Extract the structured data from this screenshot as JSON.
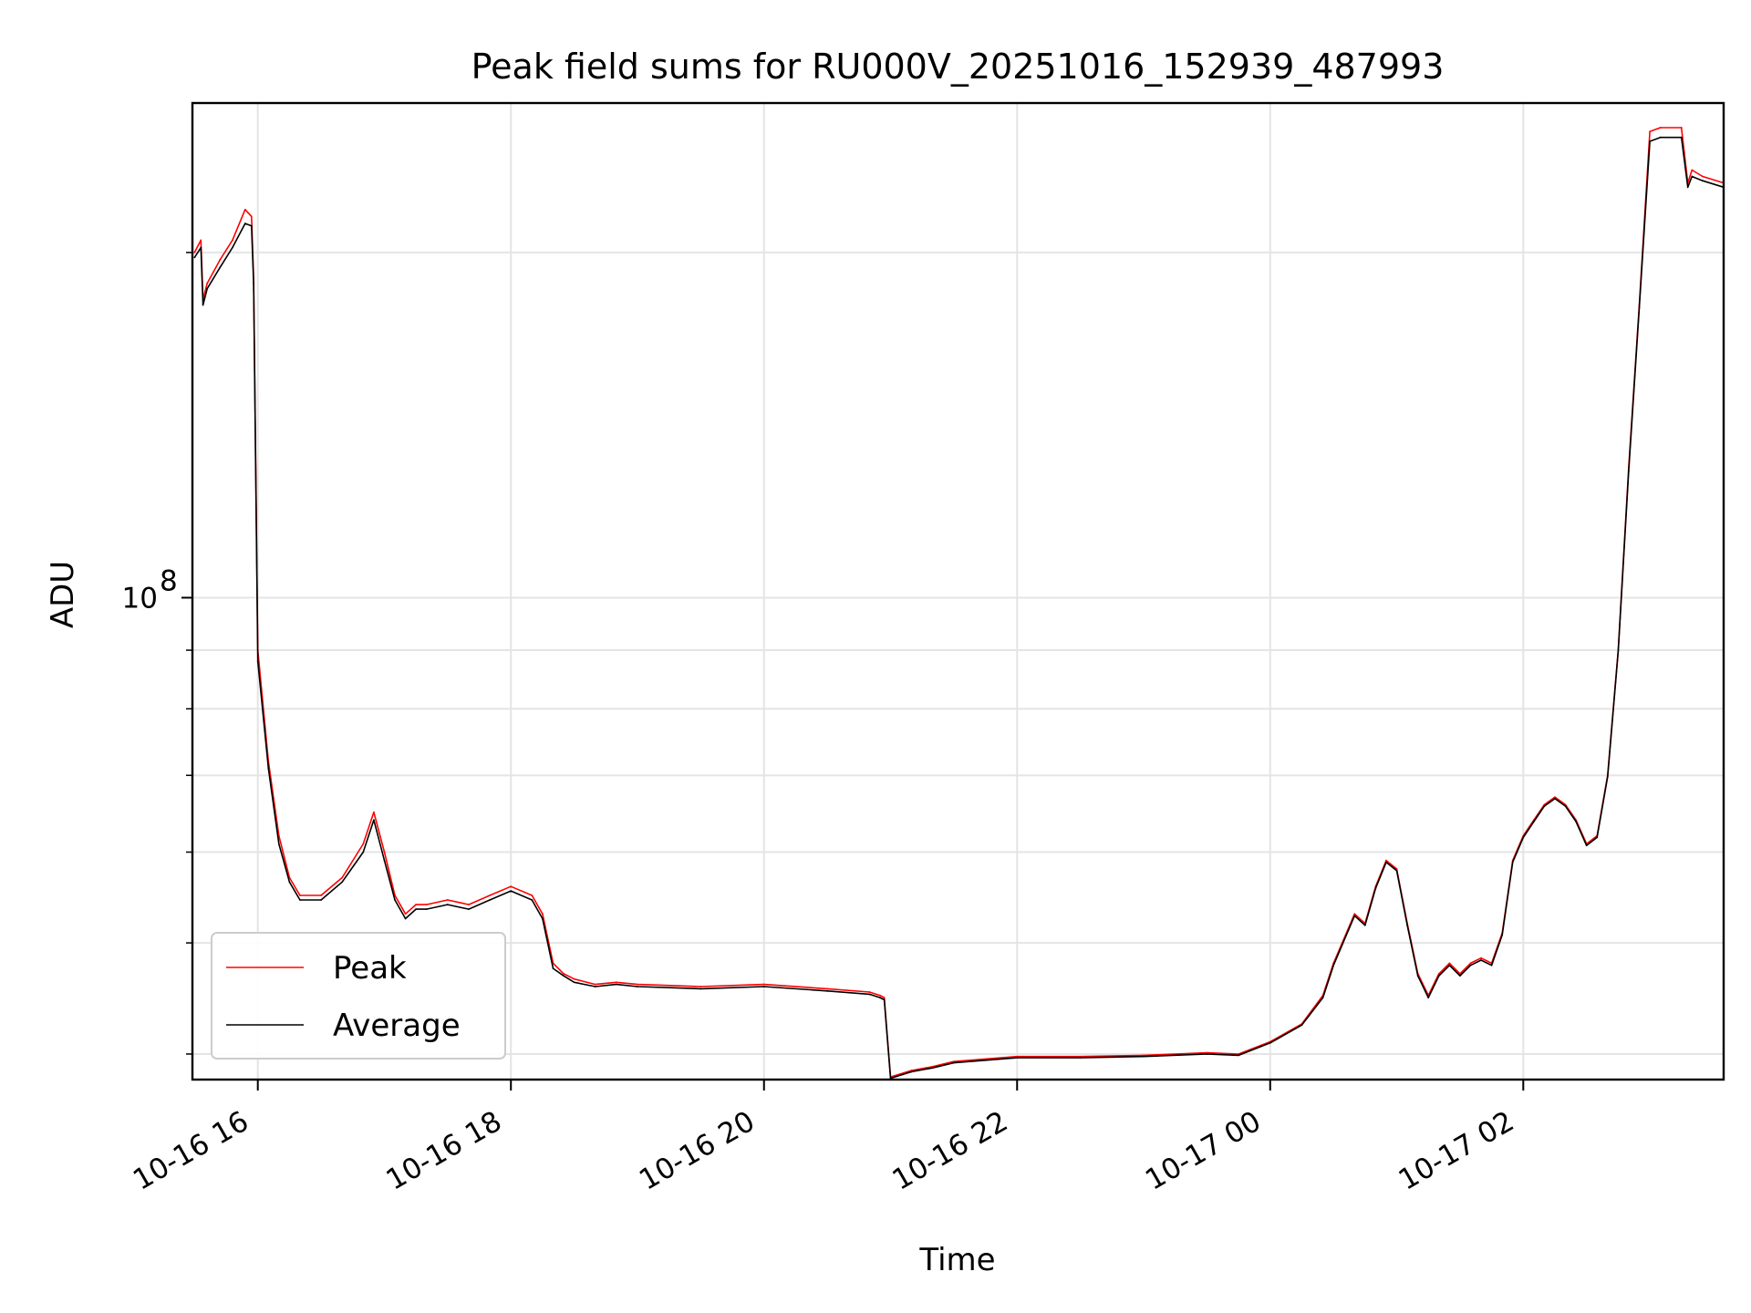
{
  "chart_data": {
    "type": "line",
    "title": "Peak field sums for RU000V_20251016_152939_487993",
    "xlabel": "Time",
    "ylabel": "ADU",
    "y_scale": "log",
    "grid": true,
    "legend_position": "lower-left",
    "x_ticks": [
      "10-16 16",
      "10-16 18",
      "10-16 20",
      "10-16 22",
      "10-17 00",
      "10-17 02"
    ],
    "x_tick_values": [
      "2025-10-16 16:00",
      "2025-10-16 18:00",
      "2025-10-16 20:00",
      "2025-10-16 22:00",
      "2025-10-17 00:00",
      "2025-10-17 02:00"
    ],
    "xlim": [
      "2025-10-16 15:29",
      "2025-10-17 03:35"
    ],
    "y_tick_major": {
      "base": "10",
      "exp": "8",
      "value": 100000000
    },
    "ylim": [
      38000000,
      270000000
    ],
    "y_minor_ticks": [
      40000000,
      50000000,
      60000000,
      70000000,
      80000000,
      90000000,
      200000000
    ],
    "series": [
      {
        "name": "Peak",
        "color": "#ff0000",
        "x": [
          "2025-10-16 15:30",
          "2025-10-16 15:33",
          "2025-10-16 15:34",
          "2025-10-16 15:36",
          "2025-10-16 15:42",
          "2025-10-16 15:48",
          "2025-10-16 15:54",
          "2025-10-16 15:57",
          "2025-10-16 15:58",
          "2025-10-16 16:00",
          "2025-10-16 16:05",
          "2025-10-16 16:10",
          "2025-10-16 16:15",
          "2025-10-16 16:20",
          "2025-10-16 16:30",
          "2025-10-16 16:40",
          "2025-10-16 16:50",
          "2025-10-16 16:55",
          "2025-10-16 17:00",
          "2025-10-16 17:05",
          "2025-10-16 17:10",
          "2025-10-16 17:15",
          "2025-10-16 17:20",
          "2025-10-16 17:30",
          "2025-10-16 17:40",
          "2025-10-16 17:50",
          "2025-10-16 18:00",
          "2025-10-16 18:10",
          "2025-10-16 18:15",
          "2025-10-16 18:20",
          "2025-10-16 18:25",
          "2025-10-16 18:30",
          "2025-10-16 18:40",
          "2025-10-16 18:50",
          "2025-10-16 19:00",
          "2025-10-16 19:30",
          "2025-10-16 20:00",
          "2025-10-16 20:30",
          "2025-10-16 20:50",
          "2025-10-16 20:55",
          "2025-10-16 20:57",
          "2025-10-16 21:00",
          "2025-10-16 21:10",
          "2025-10-16 21:20",
          "2025-10-16 21:30",
          "2025-10-16 22:00",
          "2025-10-16 22:30",
          "2025-10-16 23:00",
          "2025-10-16 23:30",
          "2025-10-16 23:45",
          "2025-10-17 00:00",
          "2025-10-17 00:15",
          "2025-10-17 00:25",
          "2025-10-17 00:30",
          "2025-10-17 00:40",
          "2025-10-17 00:45",
          "2025-10-17 00:50",
          "2025-10-17 00:55",
          "2025-10-17 01:00",
          "2025-10-17 01:05",
          "2025-10-17 01:10",
          "2025-10-17 01:15",
          "2025-10-17 01:20",
          "2025-10-17 01:25",
          "2025-10-17 01:30",
          "2025-10-17 01:35",
          "2025-10-17 01:40",
          "2025-10-17 01:45",
          "2025-10-17 01:50",
          "2025-10-17 01:55",
          "2025-10-17 02:00",
          "2025-10-17 02:05",
          "2025-10-17 02:10",
          "2025-10-17 02:15",
          "2025-10-17 02:20",
          "2025-10-17 02:25",
          "2025-10-17 02:30",
          "2025-10-17 02:35",
          "2025-10-17 02:40",
          "2025-10-17 02:45",
          "2025-10-17 02:50",
          "2025-10-17 02:55",
          "2025-10-17 03:00",
          "2025-10-17 03:05",
          "2025-10-17 03:15",
          "2025-10-17 03:18",
          "2025-10-17 03:20",
          "2025-10-17 03:25",
          "2025-10-17 03:35"
        ],
        "y": [
          200000000,
          205000000,
          182000000,
          188000000,
          197000000,
          205000000,
          218000000,
          215000000,
          190000000,
          90000000,
          72000000,
          62000000,
          57000000,
          55000000,
          55000000,
          57000000,
          61000000,
          65000000,
          60000000,
          55000000,
          53000000,
          54000000,
          54000000,
          54500000,
          54000000,
          55000000,
          56000000,
          55000000,
          53000000,
          48000000,
          47000000,
          46500000,
          46000000,
          46200000,
          46000000,
          45800000,
          46000000,
          45600000,
          45300000,
          45000000,
          44800000,
          38200000,
          38700000,
          39000000,
          39400000,
          39800000,
          39800000,
          39900000,
          40100000,
          40000000,
          41000000,
          42500000,
          45000000,
          48000000,
          53000000,
          52000000,
          56000000,
          59000000,
          58000000,
          52000000,
          47000000,
          45000000,
          47000000,
          48000000,
          47000000,
          48000000,
          48500000,
          48000000,
          51000000,
          59000000,
          62000000,
          64000000,
          66000000,
          67000000,
          66000000,
          64000000,
          61000000,
          62000000,
          70000000,
          90000000,
          130000000,
          180000000,
          255000000,
          257000000,
          257000000,
          230000000,
          236000000,
          233000000,
          230000000
        ]
      },
      {
        "name": "Average",
        "color": "#000000",
        "x": [
          "2025-10-16 15:30",
          "2025-10-16 15:33",
          "2025-10-16 15:34",
          "2025-10-16 15:36",
          "2025-10-16 15:42",
          "2025-10-16 15:48",
          "2025-10-16 15:54",
          "2025-10-16 15:57",
          "2025-10-16 15:58",
          "2025-10-16 16:00",
          "2025-10-16 16:05",
          "2025-10-16 16:10",
          "2025-10-16 16:15",
          "2025-10-16 16:20",
          "2025-10-16 16:30",
          "2025-10-16 16:40",
          "2025-10-16 16:50",
          "2025-10-16 16:55",
          "2025-10-16 17:00",
          "2025-10-16 17:05",
          "2025-10-16 17:10",
          "2025-10-16 17:15",
          "2025-10-16 17:20",
          "2025-10-16 17:30",
          "2025-10-16 17:40",
          "2025-10-16 17:50",
          "2025-10-16 18:00",
          "2025-10-16 18:10",
          "2025-10-16 18:15",
          "2025-10-16 18:20",
          "2025-10-16 18:25",
          "2025-10-16 18:30",
          "2025-10-16 18:40",
          "2025-10-16 18:50",
          "2025-10-16 19:00",
          "2025-10-16 19:30",
          "2025-10-16 20:00",
          "2025-10-16 20:30",
          "2025-10-16 20:50",
          "2025-10-16 20:55",
          "2025-10-16 20:57",
          "2025-10-16 21:00",
          "2025-10-16 21:10",
          "2025-10-16 21:20",
          "2025-10-16 21:30",
          "2025-10-16 22:00",
          "2025-10-16 22:30",
          "2025-10-16 23:00",
          "2025-10-16 23:30",
          "2025-10-16 23:45",
          "2025-10-17 00:00",
          "2025-10-17 00:15",
          "2025-10-17 00:25",
          "2025-10-17 00:30",
          "2025-10-17 00:40",
          "2025-10-17 00:45",
          "2025-10-17 00:50",
          "2025-10-17 00:55",
          "2025-10-17 01:00",
          "2025-10-17 01:05",
          "2025-10-17 01:10",
          "2025-10-17 01:15",
          "2025-10-17 01:20",
          "2025-10-17 01:25",
          "2025-10-17 01:30",
          "2025-10-17 01:35",
          "2025-10-17 01:40",
          "2025-10-17 01:45",
          "2025-10-17 01:50",
          "2025-10-17 01:55",
          "2025-10-17 02:00",
          "2025-10-17 02:05",
          "2025-10-17 02:10",
          "2025-10-17 02:15",
          "2025-10-17 02:20",
          "2025-10-17 02:25",
          "2025-10-17 02:30",
          "2025-10-17 02:35",
          "2025-10-17 02:40",
          "2025-10-17 02:45",
          "2025-10-17 02:50",
          "2025-10-17 02:55",
          "2025-10-17 03:00",
          "2025-10-17 03:05",
          "2025-10-17 03:15",
          "2025-10-17 03:18",
          "2025-10-17 03:20",
          "2025-10-17 03:25",
          "2025-10-17 03:35"
        ],
        "y": [
          198000000,
          202000000,
          180000000,
          186000000,
          194000000,
          202000000,
          212000000,
          211000000,
          188000000,
          88000000,
          71000000,
          61000000,
          56500000,
          54500000,
          54500000,
          56500000,
          60000000,
          64000000,
          59000000,
          54500000,
          52500000,
          53500000,
          53500000,
          54000000,
          53500000,
          54500000,
          55500000,
          54500000,
          52500000,
          47500000,
          46800000,
          46200000,
          45800000,
          46000000,
          45800000,
          45600000,
          45800000,
          45400000,
          45100000,
          44800000,
          44600000,
          38100000,
          38600000,
          38900000,
          39300000,
          39700000,
          39700000,
          39800000,
          40000000,
          39900000,
          40900000,
          42400000,
          44800000,
          47800000,
          52800000,
          51800000,
          55800000,
          58800000,
          57800000,
          51800000,
          46800000,
          44800000,
          46800000,
          47800000,
          46800000,
          47800000,
          48300000,
          47800000,
          50800000,
          58800000,
          61800000,
          63800000,
          65800000,
          66800000,
          65800000,
          63800000,
          60800000,
          61800000,
          69800000,
          89800000,
          129000000,
          179000000,
          250000000,
          252000000,
          252000000,
          228000000,
          233000000,
          231000000,
          228000000
        ]
      }
    ]
  }
}
